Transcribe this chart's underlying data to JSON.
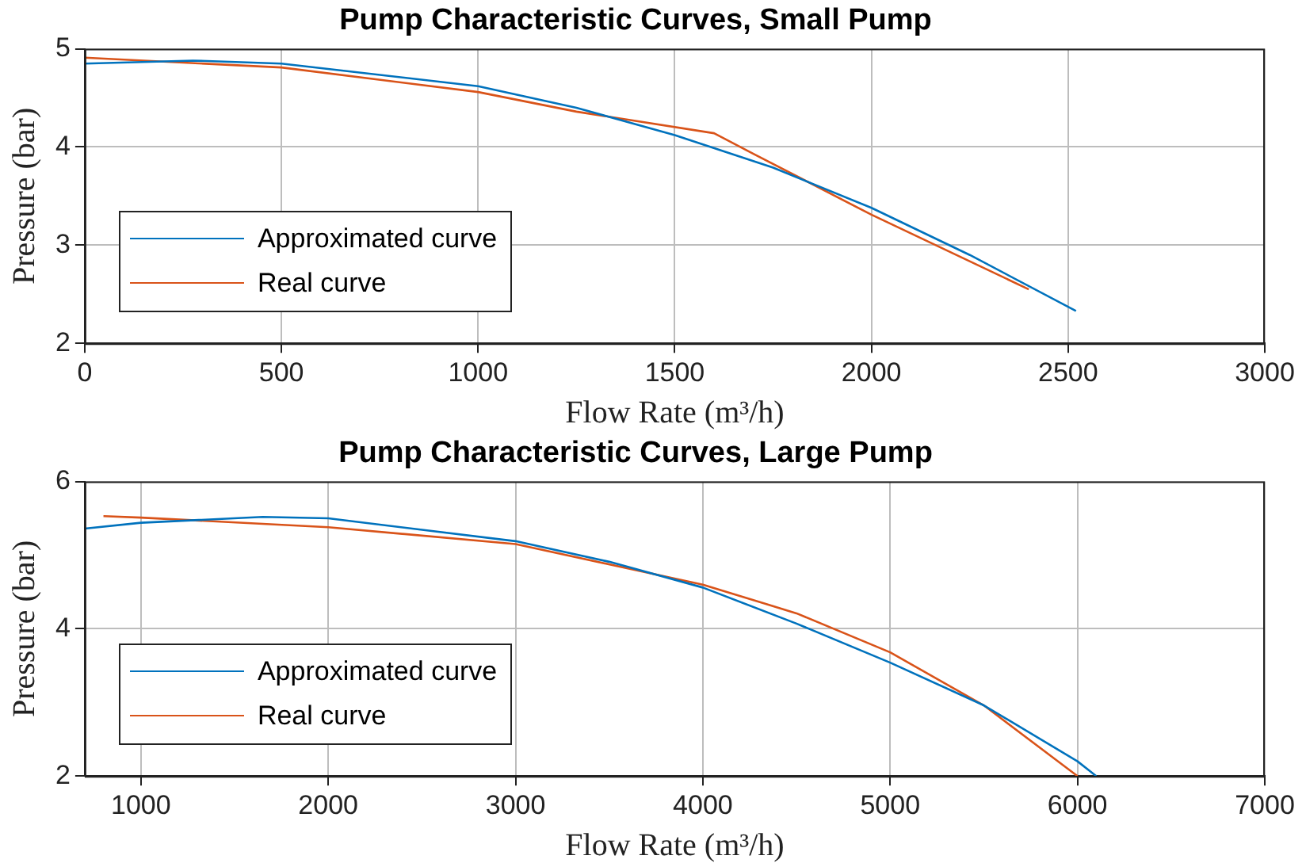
{
  "chart_data": [
    {
      "type": "line",
      "title": "Pump Characteristic Curves, Small Pump",
      "xlabel": "Flow Rate (m³/h)",
      "ylabel": "Pressure (bar)",
      "series": [
        {
          "name": "Approximated curve",
          "color": "#0072bd",
          "x": [
            0,
            275,
            500,
            1000,
            1250,
            1500,
            1750,
            2000,
            2250,
            2520
          ],
          "values": [
            4.85,
            4.88,
            4.85,
            4.62,
            4.4,
            4.12,
            3.79,
            3.38,
            2.9,
            2.33
          ]
        },
        {
          "name": "Real curve",
          "color": "#d95319",
          "x": [
            0,
            500,
            1000,
            1250,
            1600,
            1700,
            2000,
            2400
          ],
          "values": [
            4.91,
            4.81,
            4.56,
            4.36,
            4.14,
            3.93,
            3.31,
            2.55
          ]
        }
      ],
      "xlim": [
        0,
        3000
      ],
      "xticks": [
        0,
        500,
        1000,
        1500,
        2000,
        2500,
        3000
      ],
      "ylim": [
        2,
        5
      ],
      "yticks": [
        2,
        3,
        4,
        5
      ],
      "grid": true,
      "legend": "bottom left",
      "marker": "none"
    },
    {
      "type": "line",
      "title": "Pump Characteristic Curves, Large Pump",
      "xlabel": "Flow Rate (m³/h)",
      "ylabel": "Pressure (bar)",
      "series": [
        {
          "name": "Approximated curve",
          "color": "#0072bd",
          "x": [
            700,
            1000,
            1650,
            2000,
            3000,
            3500,
            4000,
            4500,
            5000,
            5500,
            6000,
            6100
          ],
          "values": [
            5.36,
            5.44,
            5.52,
            5.5,
            5.19,
            4.91,
            4.56,
            4.07,
            3.54,
            2.96,
            2.2,
            2.0
          ]
        },
        {
          "name": "Real curve",
          "color": "#d95319",
          "x": [
            800,
            1000,
            2000,
            3000,
            4000,
            4500,
            5000,
            5500,
            6000
          ],
          "values": [
            5.53,
            5.51,
            5.38,
            5.15,
            4.6,
            4.21,
            3.68,
            2.96,
            2.0
          ]
        }
      ],
      "xlim": [
        700,
        7000
      ],
      "xticks": [
        1000,
        2000,
        3000,
        4000,
        5000,
        6000,
        7000
      ],
      "ylim": [
        2,
        6
      ],
      "yticks": [
        2,
        4,
        6
      ],
      "grid": true,
      "legend": "bottom left",
      "marker": "none"
    }
  ]
}
